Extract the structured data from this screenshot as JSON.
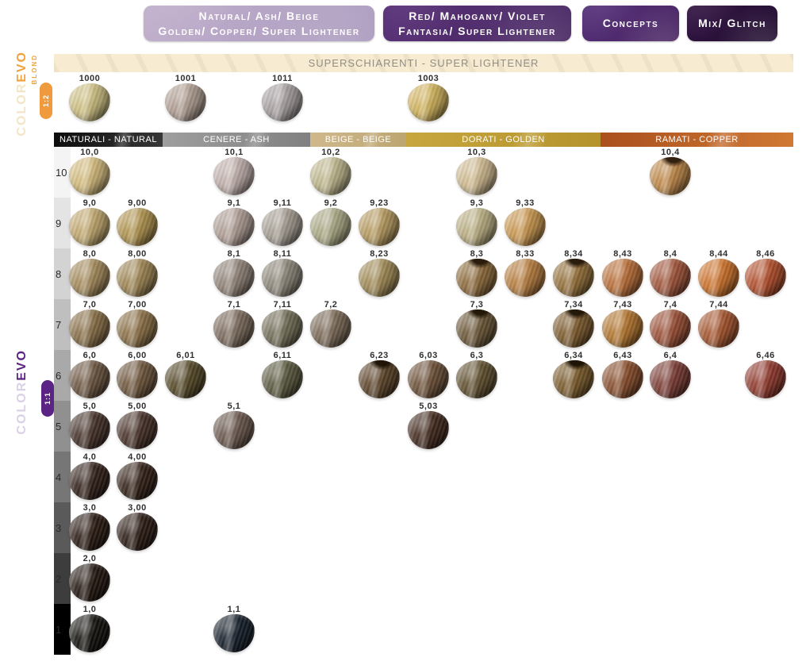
{
  "tabs": [
    {
      "line1": "Natural/ Ash/ Beige",
      "line2": "Golden/ Copper/ Super Lightener"
    },
    {
      "line1": "Red/ Mahogany/ Violet",
      "line2": "Fantasia/ Super Lightener"
    },
    {
      "line1": "Concepts"
    },
    {
      "line1": "Mix/ Glitch"
    }
  ],
  "branding": {
    "top": {
      "word_color": "COLOR",
      "word_evo": "EVO",
      "word_sub": "BLOND",
      "ratio": "1:2",
      "accent": "#f2a23d",
      "pale": "#f3e5c6",
      "badge_bg": "#ef9a3c"
    },
    "bottom": {
      "word_color": "COLOR",
      "word_evo": "EVO",
      "ratio": "1:1",
      "accent": "#5b2383",
      "pale": "#dbd1e6",
      "badge_bg": "#5b2383"
    }
  },
  "banner": {
    "text": "SUPERSCHIARENTI - SUPER LIGHTENER",
    "bg": "#f7ecd2",
    "text_color": "#928d83"
  },
  "chart_data": {
    "type": "table",
    "column_headers": [
      {
        "label": "NATURALI - NATURAL",
        "bg1": "#0c0c0c",
        "bg2": "#383838",
        "text": "#ffffff"
      },
      {
        "label": "CENERE - ASH",
        "bg1": "#9e9e9e",
        "bg2": "#808080",
        "text": "#ffffff"
      },
      {
        "label": "BEIGE - BEIGE",
        "bg1": "#cfb88c",
        "bg2": "#bda571",
        "text": "#ffffff"
      },
      {
        "label": "DORATI - GOLDEN",
        "bg1": "#c7a63f",
        "bg2": "#b5932c",
        "text": "#ffffff"
      },
      {
        "label": "RAMATI - COPPER",
        "bg1": "#a9501d",
        "bg2": "#d07934",
        "text": "#ffffff"
      }
    ],
    "super_lightener_swatches": [
      {
        "code": "1000",
        "col": 1,
        "color": "#cfc183"
      },
      {
        "code": "1001",
        "col": 3,
        "color": "#b2a094"
      },
      {
        "code": "1011",
        "col": 5,
        "color": "#a9a1a2"
      },
      {
        "code": "1003",
        "col": 8,
        "color": "#d4b55e"
      }
    ],
    "levels": [
      {
        "level": "10",
        "band": "#f4f4f4",
        "swatches": [
          {
            "code": "10,0",
            "col": 1,
            "color": "#d6bd7e"
          },
          {
            "code": "10,1",
            "col": 4,
            "color": "#c3b2ae"
          },
          {
            "code": "10,2",
            "col": 6,
            "color": "#c2b98f"
          },
          {
            "code": "10,3",
            "col": 9,
            "color": "#d3bd92"
          },
          {
            "code": "10,4",
            "col": 13,
            "color": "#c28a4a",
            "root": "#33210f"
          }
        ]
      },
      {
        "level": "9",
        "band": "#e4e4e4",
        "swatches": [
          {
            "code": "9,0",
            "col": 1,
            "color": "#c4aa70"
          },
          {
            "code": "9,00",
            "col": 2,
            "color": "#b2954f"
          },
          {
            "code": "9,1",
            "col": 4,
            "color": "#b2a097"
          },
          {
            "code": "9,11",
            "col": 5,
            "color": "#a8a095"
          },
          {
            "code": "9,2",
            "col": 6,
            "color": "#adab87"
          },
          {
            "code": "9,23",
            "col": 7,
            "color": "#b89c60"
          },
          {
            "code": "9,3",
            "col": 9,
            "color": "#bdb184"
          },
          {
            "code": "9,33",
            "col": 10,
            "color": "#cb9850"
          }
        ]
      },
      {
        "level": "8",
        "band": "#d3d3d3",
        "swatches": [
          {
            "code": "8,0",
            "col": 1,
            "color": "#a68c5c"
          },
          {
            "code": "8,00",
            "col": 2,
            "color": "#a08754"
          },
          {
            "code": "8,1",
            "col": 4,
            "color": "#93857a"
          },
          {
            "code": "8,11",
            "col": 5,
            "color": "#8f887b"
          },
          {
            "code": "8,23",
            "col": 7,
            "color": "#a28c56"
          },
          {
            "code": "8,3",
            "col": 9,
            "color": "#8f6c3c",
            "root": "#2b1d0d"
          },
          {
            "code": "8,33",
            "col": 10,
            "color": "#b97f3f"
          },
          {
            "code": "8,34",
            "col": 11,
            "color": "#96713a",
            "root": "#2b1d0d"
          },
          {
            "code": "8,43",
            "col": 12,
            "color": "#bc7038"
          },
          {
            "code": "8,4",
            "col": 13,
            "color": "#a2553a"
          },
          {
            "code": "8,44",
            "col": 14,
            "color": "#d0742c"
          },
          {
            "code": "8,46",
            "col": 15,
            "color": "#b44f2c"
          }
        ]
      },
      {
        "level": "7",
        "band": "#bfbfbf",
        "swatches": [
          {
            "code": "7,0",
            "col": 1,
            "color": "#8a7048"
          },
          {
            "code": "7,00",
            "col": 2,
            "color": "#8d7147"
          },
          {
            "code": "7,1",
            "col": 4,
            "color": "#7d6c5e"
          },
          {
            "code": "7,11",
            "col": 5,
            "color": "#746f58"
          },
          {
            "code": "7,2",
            "col": 6,
            "color": "#7c6a57"
          },
          {
            "code": "7,3",
            "col": 9,
            "color": "#6d5838",
            "root": "#241808"
          },
          {
            "code": "7,34",
            "col": 11,
            "color": "#7e5c2e",
            "root": "#241808"
          },
          {
            "code": "7,43",
            "col": 12,
            "color": "#b5772f"
          },
          {
            "code": "7,4",
            "col": 13,
            "color": "#9c5036"
          },
          {
            "code": "7,44",
            "col": 14,
            "color": "#a8562e"
          }
        ]
      },
      {
        "level": "6",
        "band": "#a9a9a9",
        "swatches": [
          {
            "code": "6,0",
            "col": 1,
            "color": "#6e5742"
          },
          {
            "code": "6,00",
            "col": 2,
            "color": "#70573d"
          },
          {
            "code": "6,01",
            "col": 3,
            "color": "#564a28"
          },
          {
            "code": "6,11",
            "col": 5,
            "color": "#5c5a40"
          },
          {
            "code": "6,23",
            "col": 7,
            "color": "#5e452a",
            "root": "#1f1406"
          },
          {
            "code": "6,03",
            "col": 8,
            "color": "#6d5138"
          },
          {
            "code": "6,3",
            "col": 9,
            "color": "#625130"
          },
          {
            "code": "6,34",
            "col": 11,
            "color": "#7c5c2c",
            "root": "#1f1406"
          },
          {
            "code": "6,43",
            "col": 12,
            "color": "#8a4e2c"
          },
          {
            "code": "6,4",
            "col": 13,
            "color": "#7c3c34"
          },
          {
            "code": "6,46",
            "col": 15,
            "color": "#933a2e"
          }
        ]
      },
      {
        "level": "5",
        "band": "#909090",
        "swatches": [
          {
            "code": "5,0",
            "col": 1,
            "color": "#47332a"
          },
          {
            "code": "5,00",
            "col": 2,
            "color": "#483229"
          },
          {
            "code": "5,1",
            "col": 4,
            "color": "#6c594f"
          },
          {
            "code": "5,03",
            "col": 8,
            "color": "#432a1e"
          }
        ]
      },
      {
        "level": "4",
        "band": "#767676",
        "swatches": [
          {
            "code": "4,0",
            "col": 1,
            "color": "#33211a"
          },
          {
            "code": "4,00",
            "col": 2,
            "color": "#342218"
          }
        ]
      },
      {
        "level": "3",
        "band": "#5a5a5a",
        "swatches": [
          {
            "code": "3,0",
            "col": 1,
            "color": "#2c1c14"
          },
          {
            "code": "3,00",
            "col": 2,
            "color": "#2d1d15"
          }
        ]
      },
      {
        "level": "2",
        "band": "#3d3d3d",
        "swatches": [
          {
            "code": "2,0",
            "col": 1,
            "color": "#251811"
          }
        ]
      },
      {
        "level": "1",
        "band": "#000000",
        "swatches": [
          {
            "code": "1,0",
            "col": 1,
            "color": "#15130f"
          },
          {
            "code": "1,1",
            "col": 4,
            "color": "#17202c"
          }
        ]
      }
    ]
  }
}
